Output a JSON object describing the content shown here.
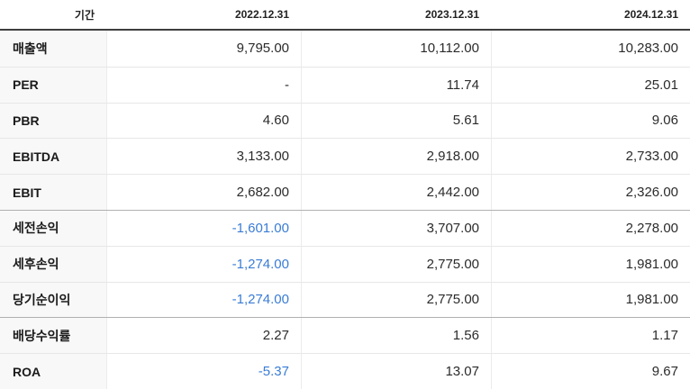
{
  "table": {
    "header": {
      "period_label": "기간",
      "columns": [
        "2022.12.31",
        "2023.12.31",
        "2024.12.31"
      ]
    },
    "rows": [
      {
        "label": "매출액",
        "values": [
          "9,795.00",
          "10,112.00",
          "10,283.00"
        ],
        "section_start": false
      },
      {
        "label": "PER",
        "values": [
          "-",
          "11.74",
          "25.01"
        ],
        "section_start": false
      },
      {
        "label": "PBR",
        "values": [
          "4.60",
          "5.61",
          "9.06"
        ],
        "section_start": false
      },
      {
        "label": "EBITDA",
        "values": [
          "3,133.00",
          "2,918.00",
          "2,733.00"
        ],
        "section_start": false
      },
      {
        "label": "EBIT",
        "values": [
          "2,682.00",
          "2,442.00",
          "2,326.00"
        ],
        "section_start": false
      },
      {
        "label": "세전손익",
        "values": [
          "-1,601.00",
          "3,707.00",
          "2,278.00"
        ],
        "section_start": true
      },
      {
        "label": "세후손익",
        "values": [
          "-1,274.00",
          "2,775.00",
          "1,981.00"
        ],
        "section_start": false
      },
      {
        "label": "당기순이익",
        "values": [
          "-1,274.00",
          "2,775.00",
          "1,981.00"
        ],
        "section_start": false
      },
      {
        "label": "배당수익률",
        "values": [
          "2.27",
          "1.56",
          "1.17"
        ],
        "section_start": true
      },
      {
        "label": "ROA",
        "values": [
          "-5.37",
          "13.07",
          "9.67"
        ],
        "section_start": false
      }
    ]
  },
  "colors": {
    "negative_value": "#3a7cd5",
    "text": "#222222",
    "label_background": "#f8f8f8",
    "row_border": "#e7e7e7",
    "section_border": "#b0b0b0",
    "header_border": "#3e3e3e"
  },
  "chart_data": {
    "type": "table",
    "categories": [
      "2022.12.31",
      "2023.12.31",
      "2024.12.31"
    ],
    "series": [
      {
        "name": "매출액",
        "values": [
          9795.0,
          10112.0,
          10283.0
        ]
      },
      {
        "name": "PER",
        "values": [
          null,
          11.74,
          25.01
        ]
      },
      {
        "name": "PBR",
        "values": [
          4.6,
          5.61,
          9.06
        ]
      },
      {
        "name": "EBITDA",
        "values": [
          3133.0,
          2918.0,
          2733.0
        ]
      },
      {
        "name": "EBIT",
        "values": [
          2682.0,
          2442.0,
          2326.0
        ]
      },
      {
        "name": "세전손익",
        "values": [
          -1601.0,
          3707.0,
          2278.0
        ]
      },
      {
        "name": "세후손익",
        "values": [
          -1274.0,
          2775.0,
          1981.0
        ]
      },
      {
        "name": "당기순이익",
        "values": [
          -1274.0,
          2775.0,
          1981.0
        ]
      },
      {
        "name": "배당수익률",
        "values": [
          2.27,
          1.56,
          1.17
        ]
      },
      {
        "name": "ROA",
        "values": [
          -5.37,
          13.07,
          9.67
        ]
      }
    ],
    "title": "",
    "layout_hints": {
      "first_column_header": "기간",
      "negative_values_colored": "blue",
      "value_alignment": "right"
    }
  }
}
